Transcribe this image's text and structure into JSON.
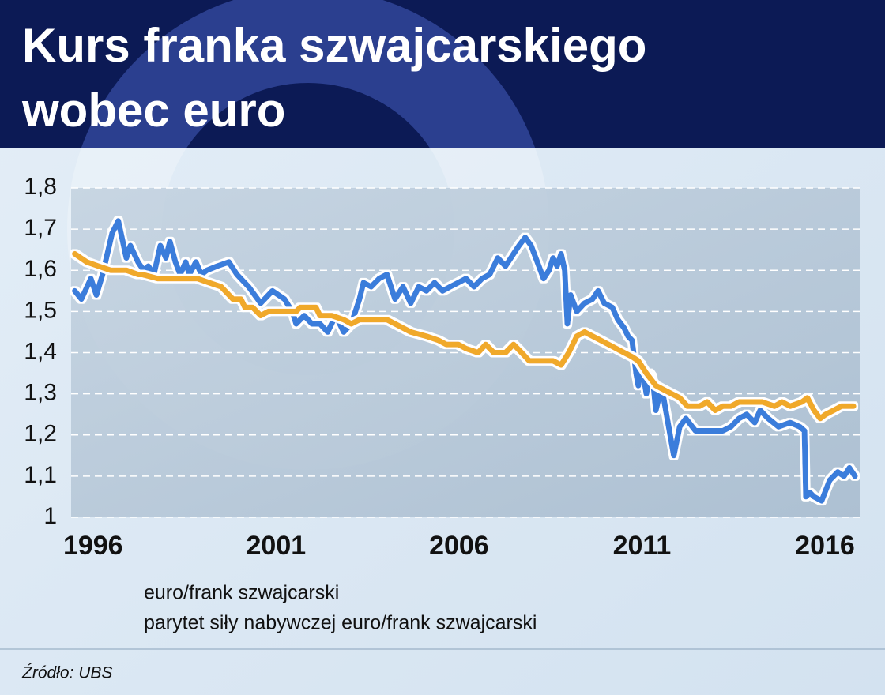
{
  "chart_data": {
    "type": "line",
    "title": [
      "Kurs franka szwajcarskiego",
      "wobec euro"
    ],
    "source": "Źródło: UBS",
    "xlim": [
      1995.4,
      2016.95
    ],
    "xticks": [
      1996,
      2001,
      2006,
      2011,
      2016
    ],
    "ylim": [
      1,
      1.8
    ],
    "yticks": [
      {
        "value": 1,
        "label": "1"
      },
      {
        "value": 1.1,
        "label": "1,1"
      },
      {
        "value": 1.2,
        "label": "1,2"
      },
      {
        "value": 1.3,
        "label": "1,3"
      },
      {
        "value": 1.4,
        "label": "1,4"
      },
      {
        "value": 1.5,
        "label": "1,5"
      },
      {
        "value": 1.6,
        "label": "1,6"
      },
      {
        "value": 1.7,
        "label": "1,7"
      },
      {
        "value": 1.8,
        "label": "1,8"
      }
    ],
    "grid": true,
    "series": [
      {
        "name": "euro/frank szwajcarski",
        "color": "#3b7ddb",
        "x": [
          1995.5,
          1995.68,
          1995.94,
          1996.09,
          1996.26,
          1996.52,
          1996.69,
          1996.91,
          1997.02,
          1997.23,
          1997.38,
          1997.51,
          1997.66,
          1997.84,
          1997.99,
          1998.1,
          1998.25,
          1998.38,
          1998.53,
          1998.63,
          1998.81,
          1998.96,
          1999.11,
          1999.39,
          1999.71,
          1999.93,
          2000.25,
          2000.58,
          2000.9,
          2001.23,
          2001.44,
          2001.55,
          2001.77,
          2001.98,
          2002.2,
          2002.41,
          2002.63,
          2002.85,
          2003.06,
          2003.28,
          2003.39,
          2003.6,
          2003.82,
          2004.03,
          2004.25,
          2004.47,
          2004.68,
          2004.9,
          2005.11,
          2005.33,
          2005.55,
          2005.76,
          2005.98,
          2006.19,
          2006.41,
          2006.63,
          2006.84,
          2007.06,
          2007.27,
          2007.49,
          2007.64,
          2007.81,
          2007.97,
          2008.14,
          2008.31,
          2008.46,
          2008.57,
          2008.68,
          2008.79,
          2008.89,
          2008.96,
          2009.05,
          2009.22,
          2009.43,
          2009.65,
          2009.8,
          2009.97,
          2010.19,
          2010.34,
          2010.51,
          2010.62,
          2010.73,
          2010.84,
          2010.9,
          2010.99,
          2011.12,
          2011.21,
          2011.29,
          2011.38,
          2011.49,
          2011.59,
          2011.77,
          2011.87,
          2012.03,
          2012.2,
          2012.46,
          2012.89,
          2013.21,
          2013.43,
          2013.65,
          2013.86,
          2014.08,
          2014.23,
          2014.45,
          2014.73,
          2015.05,
          2015.31,
          2015.44,
          2015.48,
          2015.59,
          2015.7,
          2015.91,
          2016.13,
          2016.35,
          2016.52,
          2016.67,
          2016.82
        ],
        "values": [
          1.55,
          1.53,
          1.58,
          1.54,
          1.59,
          1.69,
          1.72,
          1.63,
          1.66,
          1.62,
          1.6,
          1.61,
          1.59,
          1.66,
          1.63,
          1.67,
          1.62,
          1.59,
          1.62,
          1.59,
          1.62,
          1.59,
          1.6,
          1.61,
          1.62,
          1.59,
          1.56,
          1.52,
          1.55,
          1.53,
          1.5,
          1.47,
          1.49,
          1.47,
          1.47,
          1.45,
          1.49,
          1.45,
          1.47,
          1.53,
          1.57,
          1.56,
          1.58,
          1.59,
          1.53,
          1.56,
          1.52,
          1.56,
          1.55,
          1.57,
          1.55,
          1.56,
          1.57,
          1.58,
          1.56,
          1.58,
          1.59,
          1.63,
          1.61,
          1.64,
          1.66,
          1.68,
          1.66,
          1.62,
          1.58,
          1.6,
          1.63,
          1.61,
          1.64,
          1.6,
          1.47,
          1.54,
          1.5,
          1.52,
          1.53,
          1.55,
          1.52,
          1.51,
          1.48,
          1.46,
          1.44,
          1.43,
          1.35,
          1.32,
          1.37,
          1.3,
          1.35,
          1.34,
          1.26,
          1.3,
          1.29,
          1.2,
          1.15,
          1.22,
          1.24,
          1.21,
          1.21,
          1.21,
          1.22,
          1.24,
          1.25,
          1.23,
          1.26,
          1.24,
          1.22,
          1.23,
          1.22,
          1.21,
          1.05,
          1.06,
          1.05,
          1.04,
          1.09,
          1.11,
          1.1,
          1.12,
          1.1
        ]
      },
      {
        "name": "parytet siły nabywczej euro/frank szwajcarski",
        "color": "#f0a92c",
        "x": [
          1995.5,
          1995.83,
          1996.15,
          1996.48,
          1996.91,
          1997.23,
          1997.34,
          1997.77,
          1998.2,
          1998.85,
          1999.17,
          1999.5,
          1999.82,
          2000.04,
          2000.15,
          2000.36,
          2000.58,
          2000.79,
          2001.23,
          2001.55,
          2001.66,
          2002.09,
          2002.2,
          2002.52,
          2002.85,
          2003.06,
          2003.28,
          2003.6,
          2004.03,
          2004.25,
          2004.68,
          2005.11,
          2005.44,
          2005.65,
          2005.98,
          2006.19,
          2006.52,
          2006.73,
          2006.95,
          2007.27,
          2007.49,
          2007.71,
          2007.92,
          2008.35,
          2008.57,
          2008.79,
          2009.0,
          2009.22,
          2009.43,
          2009.87,
          2010.3,
          2010.51,
          2010.73,
          2010.9,
          2011.12,
          2011.38,
          2011.59,
          2011.81,
          2012.03,
          2012.24,
          2012.57,
          2012.78,
          2013.0,
          2013.21,
          2013.43,
          2013.65,
          2013.97,
          2014.29,
          2014.62,
          2014.83,
          2015.05,
          2015.37,
          2015.52,
          2015.7,
          2015.87,
          2016.02,
          2016.24,
          2016.45,
          2016.78
        ],
        "values": [
          1.64,
          1.62,
          1.61,
          1.6,
          1.6,
          1.59,
          1.59,
          1.58,
          1.58,
          1.58,
          1.57,
          1.56,
          1.53,
          1.53,
          1.51,
          1.51,
          1.49,
          1.5,
          1.5,
          1.5,
          1.51,
          1.51,
          1.49,
          1.49,
          1.48,
          1.47,
          1.48,
          1.48,
          1.48,
          1.47,
          1.45,
          1.44,
          1.43,
          1.42,
          1.42,
          1.41,
          1.4,
          1.42,
          1.4,
          1.4,
          1.42,
          1.4,
          1.38,
          1.38,
          1.38,
          1.37,
          1.4,
          1.44,
          1.45,
          1.43,
          1.41,
          1.4,
          1.39,
          1.38,
          1.35,
          1.32,
          1.31,
          1.3,
          1.29,
          1.27,
          1.27,
          1.28,
          1.26,
          1.27,
          1.27,
          1.28,
          1.28,
          1.28,
          1.27,
          1.28,
          1.27,
          1.28,
          1.29,
          1.26,
          1.24,
          1.25,
          1.26,
          1.27,
          1.27
        ]
      }
    ]
  }
}
